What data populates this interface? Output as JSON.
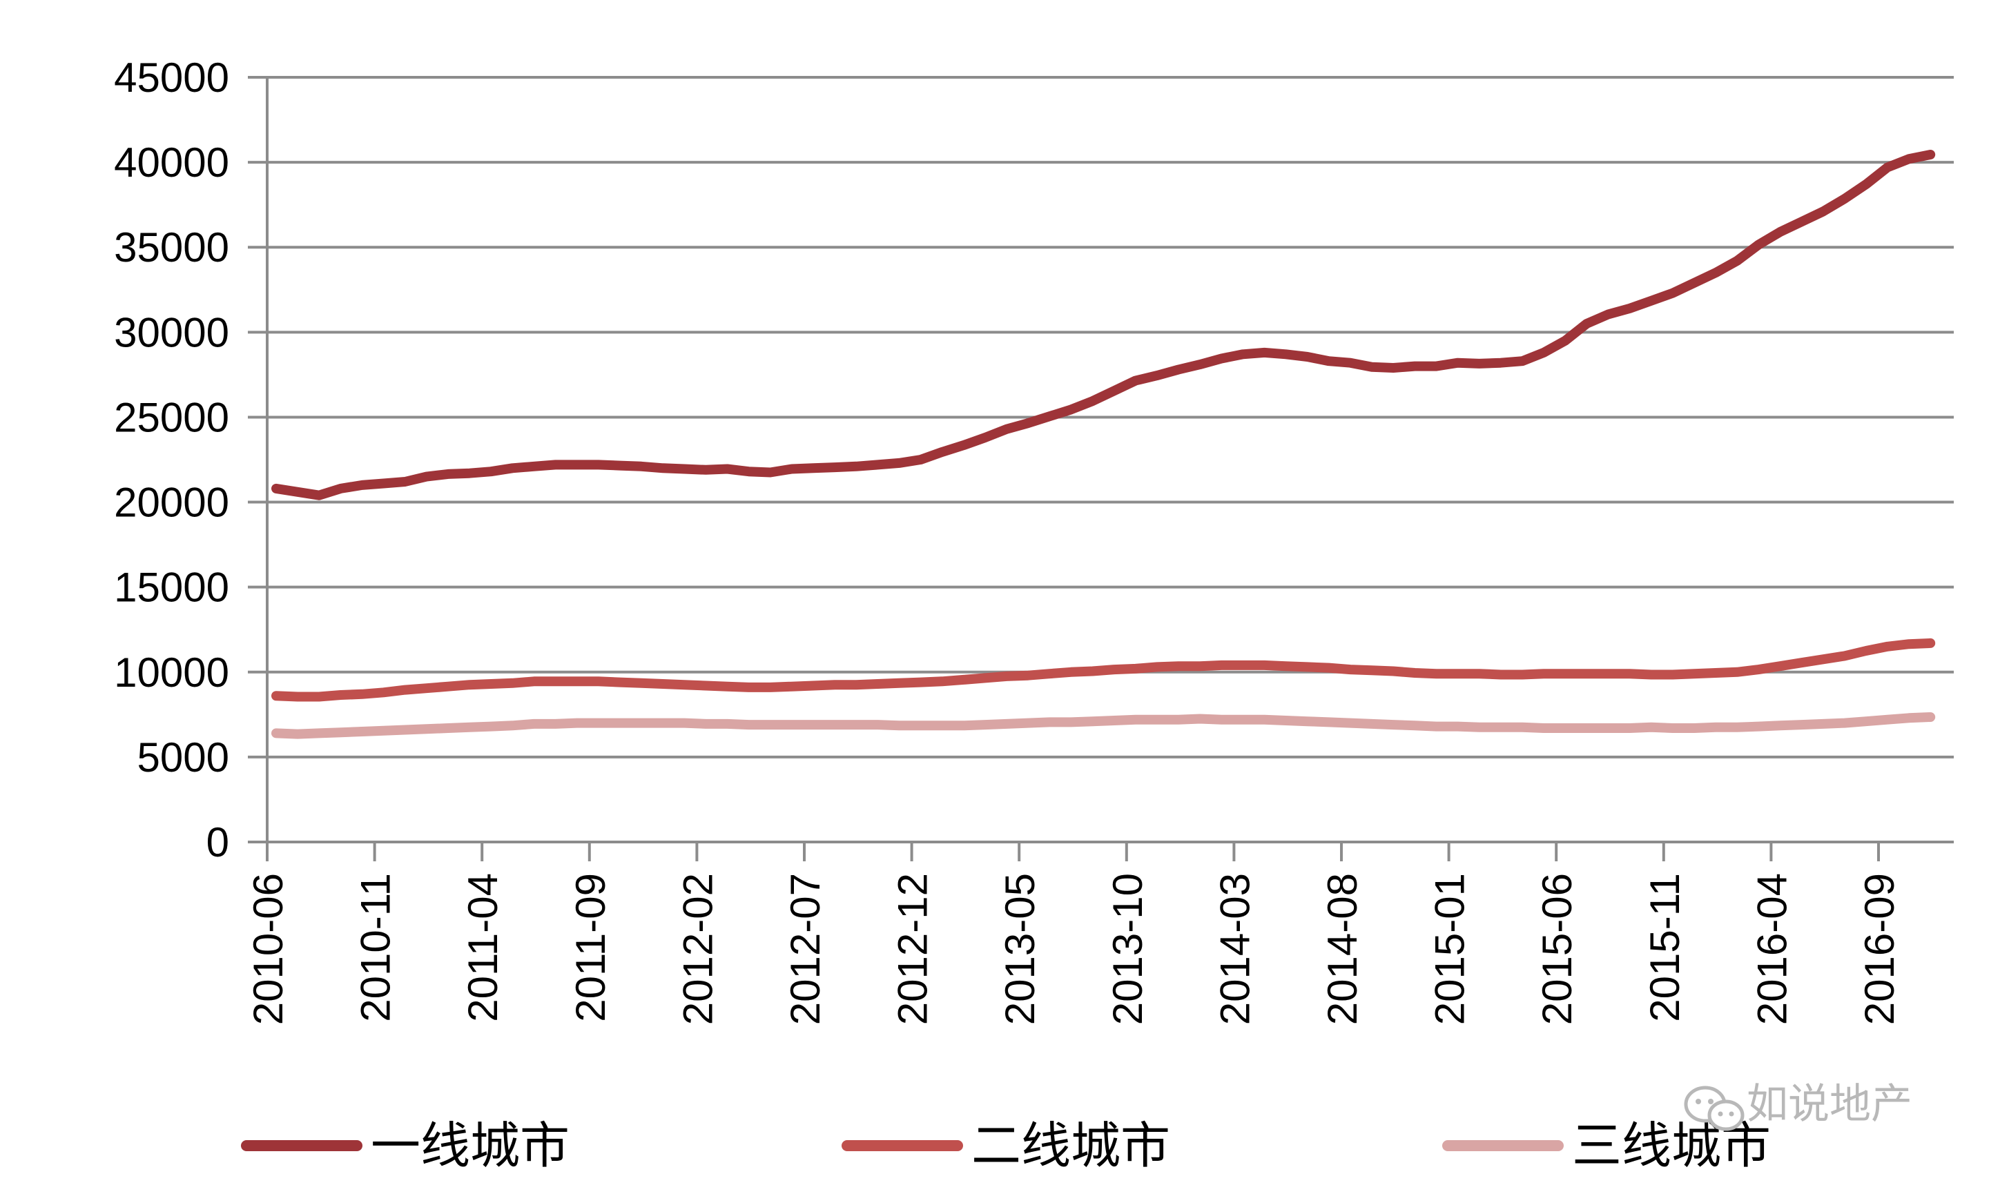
{
  "chart_data": {
    "type": "line",
    "title": "",
    "xlabel": "",
    "ylabel": "",
    "ylim": [
      0,
      45000
    ],
    "yticks": [
      "0",
      "5000",
      "10000",
      "15000",
      "20000",
      "25000",
      "30000",
      "35000",
      "40000",
      "45000"
    ],
    "xticks": [
      "2010-06",
      "2010-11",
      "2011-04",
      "2011-09",
      "2012-02",
      "2012-07",
      "2012-12",
      "2013-05",
      "2013-10",
      "2014-03",
      "2014-08",
      "2015-01",
      "2015-06",
      "2015-11",
      "2016-04",
      "2016-09"
    ],
    "grid": true,
    "legend_position": "bottom",
    "x_start": "2010-06",
    "series": [
      {
        "name": "一线城市",
        "color": "#9e3438",
        "values": [
          20800,
          20600,
          20400,
          20800,
          21000,
          21100,
          21200,
          21500,
          21650,
          21700,
          21800,
          22000,
          22100,
          22200,
          22200,
          22200,
          22150,
          22100,
          22000,
          21950,
          21900,
          21950,
          21800,
          21750,
          21950,
          22000,
          22050,
          22100,
          22200,
          22300,
          22500,
          22950,
          23350,
          23800,
          24300,
          24650,
          25050,
          25450,
          25950,
          26550,
          27150,
          27450,
          27800,
          28100,
          28450,
          28700,
          28800,
          28700,
          28550,
          28300,
          28200,
          27950,
          27900,
          28000,
          28000,
          28200,
          28150,
          28200,
          28300,
          28800,
          29500,
          30500,
          31050,
          31400,
          31850,
          32300,
          32900,
          33500,
          34200,
          35150,
          35900,
          36500,
          37100,
          37850,
          38700,
          39700,
          40200,
          40450
        ]
      },
      {
        "name": "二线城市",
        "color": "#c0504d",
        "values": [
          8600,
          8550,
          8550,
          8650,
          8700,
          8800,
          8950,
          9050,
          9150,
          9250,
          9300,
          9350,
          9450,
          9450,
          9450,
          9450,
          9400,
          9350,
          9300,
          9250,
          9200,
          9150,
          9100,
          9100,
          9150,
          9200,
          9250,
          9250,
          9300,
          9350,
          9400,
          9450,
          9550,
          9650,
          9750,
          9800,
          9900,
          10000,
          10050,
          10150,
          10200,
          10300,
          10350,
          10350,
          10400,
          10400,
          10400,
          10350,
          10300,
          10250,
          10150,
          10100,
          10050,
          9950,
          9900,
          9900,
          9900,
          9850,
          9850,
          9900,
          9900,
          9900,
          9900,
          9900,
          9850,
          9850,
          9900,
          9950,
          10000,
          10150,
          10350,
          10550,
          10750,
          10950,
          11250,
          11500,
          11650,
          11700
        ]
      },
      {
        "name": "三线城市",
        "color": "#d9a5a4",
        "values": [
          6400,
          6350,
          6400,
          6450,
          6500,
          6550,
          6600,
          6650,
          6700,
          6750,
          6800,
          6850,
          6950,
          6950,
          7000,
          7000,
          7000,
          7000,
          7000,
          7000,
          6950,
          6950,
          6900,
          6900,
          6900,
          6900,
          6900,
          6900,
          6900,
          6850,
          6850,
          6850,
          6850,
          6900,
          6950,
          7000,
          7050,
          7050,
          7100,
          7150,
          7200,
          7200,
          7200,
          7250,
          7200,
          7200,
          7200,
          7150,
          7100,
          7050,
          7000,
          6950,
          6900,
          6850,
          6800,
          6800,
          6750,
          6750,
          6750,
          6700,
          6700,
          6700,
          6700,
          6700,
          6750,
          6700,
          6700,
          6750,
          6750,
          6800,
          6850,
          6900,
          6950,
          7000,
          7100,
          7200,
          7300,
          7350
        ]
      }
    ]
  },
  "watermark": {
    "text": "如说地产"
  }
}
